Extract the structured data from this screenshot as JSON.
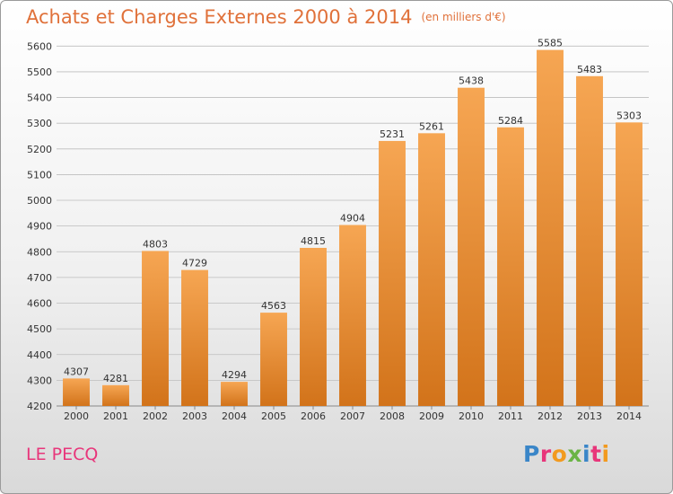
{
  "header": {
    "title": "Achats et Charges Externes 2000 à 2014",
    "subtitle": "(en milliers d'€)"
  },
  "footer": {
    "city": "LE PECQ",
    "logo": "Proxiti"
  },
  "colors": {
    "accent": "#e0713a",
    "bar_top": "#f6a653",
    "bar_bottom": "#d2731a",
    "city": "#e8357a"
  },
  "chart_data": {
    "type": "bar",
    "categories": [
      "2000",
      "2001",
      "2002",
      "2003",
      "2004",
      "2005",
      "2006",
      "2007",
      "2008",
      "2009",
      "2010",
      "2011",
      "2012",
      "2013",
      "2014"
    ],
    "values": [
      4307,
      4281,
      4803,
      4729,
      4294,
      4563,
      4815,
      4904,
      5231,
      5261,
      5438,
      5284,
      5585,
      5483,
      5303
    ],
    "ylim": [
      4200,
      5650
    ],
    "yticks": [
      4200,
      4300,
      4400,
      4500,
      4600,
      4700,
      4800,
      4900,
      5000,
      5100,
      5200,
      5300,
      5400,
      5500,
      5600
    ],
    "grid": true,
    "data_labels": true
  }
}
